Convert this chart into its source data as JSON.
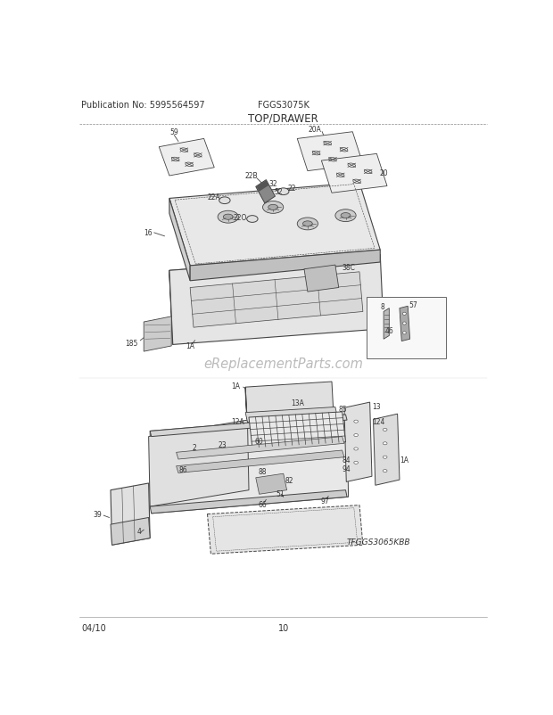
{
  "pub_no": "Publication No: 5995564597",
  "model": "FGGS3075K",
  "section": "TOP/DRAWER",
  "footer_date": "04/10",
  "footer_page": "10",
  "watermark": "eReplacementParts.com",
  "diagram_label": "TFGGS3065KBB",
  "bg_color": "#ffffff",
  "line_color": "#444444",
  "text_color": "#333333",
  "gray_fill": "#d8d8d8",
  "light_fill": "#eeeeee",
  "mid_fill": "#c8c8c8",
  "dark_fill": "#aaaaaa",
  "header_fontsize": 7,
  "title_fontsize": 8.5,
  "label_fontsize": 5.5,
  "watermark_fontsize": 10.5
}
